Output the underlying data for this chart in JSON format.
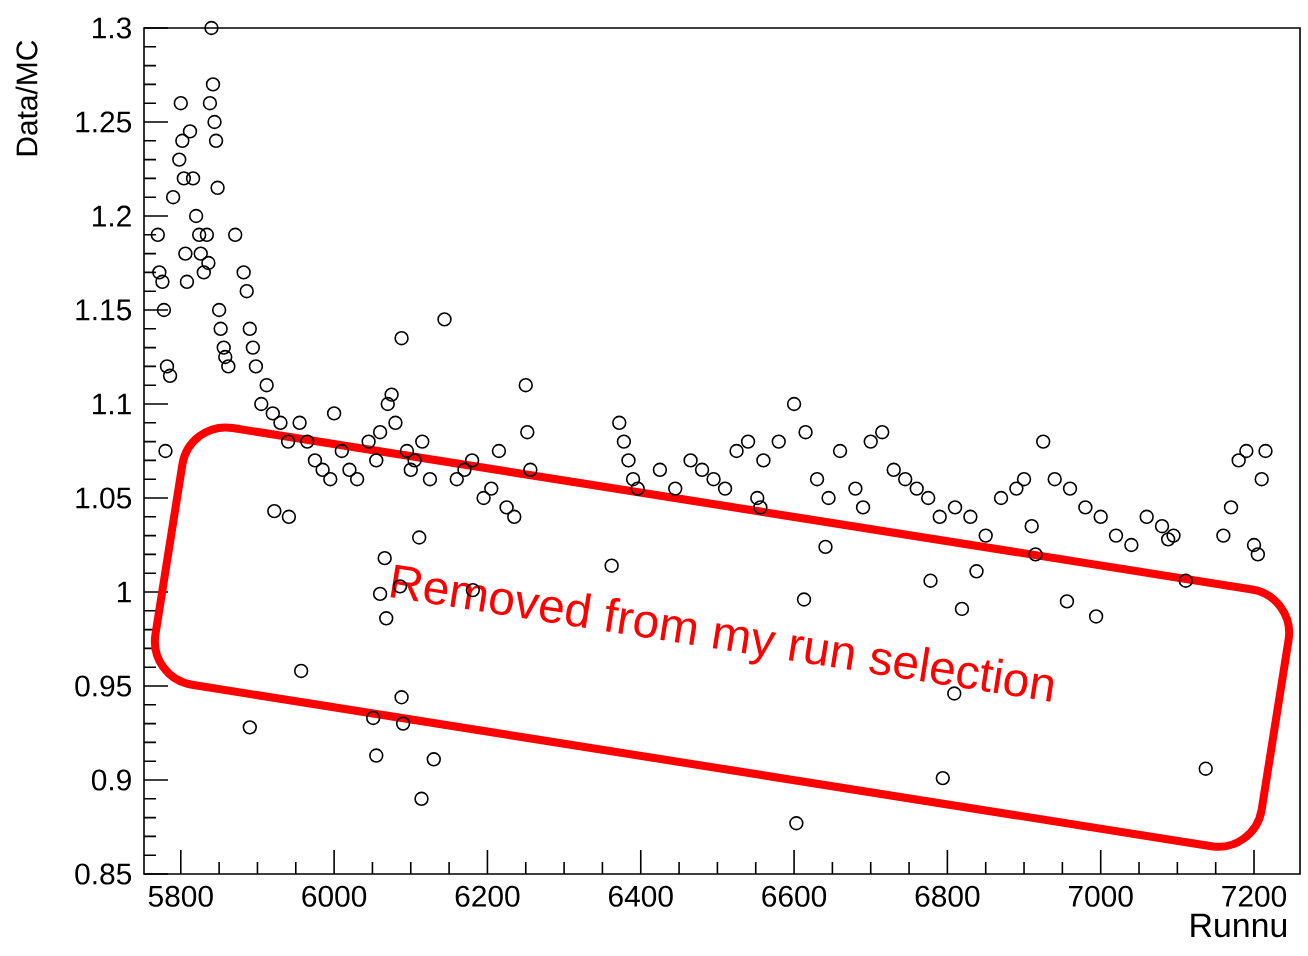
{
  "chart_data": {
    "type": "scatter",
    "ylabel": "Data/MC",
    "xlabel": "Runnu",
    "marker": "circle",
    "color": "#000000",
    "xlim": [
      5752,
      7260
    ],
    "ylim": [
      0.85,
      1.3
    ],
    "xticks": [
      5800,
      6000,
      6200,
      6400,
      6600,
      6800,
      7000,
      7200
    ],
    "yticks": [
      0.85,
      {
        "value": 0.9,
        "label": "0.9"
      },
      0.95,
      {
        "value": 1.0,
        "label": "1"
      },
      1.05,
      {
        "value": 1.1,
        "label": "1.1"
      },
      1.15,
      {
        "value": 1.2,
        "label": "1.2"
      },
      1.25,
      {
        "value": 1.3,
        "label": "1.3"
      }
    ],
    "annotations": [
      "Removed from my run selection"
    ],
    "x": [
      5780,
      5770,
      5772,
      5776,
      5778,
      5782,
      5786,
      5790,
      5800,
      5798,
      5802,
      5804,
      5806,
      5808,
      5812,
      5816,
      5820,
      5824,
      5826,
      5830,
      5840,
      5842,
      5838,
      5844,
      5846,
      5848,
      5836,
      5834,
      5850,
      5852,
      5856,
      5858,
      5862,
      5871,
      5882,
      5886,
      5890,
      5894,
      5898,
      5905,
      5912,
      5920,
      5930,
      5940,
      5955,
      5965,
      5975,
      5985,
      5995,
      6000,
      6010,
      6020,
      6030,
      6045,
      6055,
      6060,
      6070,
      6075,
      6080,
      6088,
      6095,
      6100,
      6105,
      6115,
      6125,
      6144,
      6160,
      6170,
      6180,
      6195,
      6205,
      6215,
      6225,
      6235,
      6250,
      6252,
      6256,
      6372,
      6378,
      6384,
      6390,
      6396,
      6425,
      6445,
      6465,
      6480,
      6495,
      6510,
      6525,
      6540,
      6552,
      6556,
      6560,
      6580,
      6600,
      6615,
      6630,
      6645,
      6660,
      6680,
      6690,
      6700,
      6715,
      6730,
      6745,
      6760,
      6775,
      6790,
      6810,
      6830,
      6850,
      6870,
      6890,
      6900,
      6910,
      6915,
      6925,
      6940,
      6960,
      6980,
      7000,
      7020,
      7040,
      7060,
      7080,
      7095,
      7160,
      7170,
      7180,
      7190,
      7200,
      7205,
      7210,
      7215,
      5890,
      5957,
      6051,
      6055,
      6088,
      6090,
      6130,
      6114,
      6068,
      6060,
      6086,
      6066,
      6181,
      6362,
      6613,
      6603,
      6794,
      6809,
      6819,
      6956,
      6994,
      7137,
      7111,
      6641,
      6838,
      6778,
      7088,
      5922,
      5941,
      6111
    ],
    "values": [
      1.075,
      1.19,
      1.17,
      1.165,
      1.15,
      1.12,
      1.115,
      1.21,
      1.26,
      1.23,
      1.24,
      1.22,
      1.18,
      1.165,
      1.245,
      1.22,
      1.2,
      1.19,
      1.18,
      1.17,
      1.3,
      1.27,
      1.26,
      1.25,
      1.24,
      1.215,
      1.175,
      1.19,
      1.15,
      1.14,
      1.13,
      1.125,
      1.12,
      1.19,
      1.17,
      1.16,
      1.14,
      1.13,
      1.12,
      1.1,
      1.11,
      1.095,
      1.09,
      1.08,
      1.09,
      1.08,
      1.07,
      1.065,
      1.06,
      1.095,
      1.075,
      1.065,
      1.06,
      1.08,
      1.07,
      1.085,
      1.1,
      1.105,
      1.09,
      1.135,
      1.075,
      1.065,
      1.07,
      1.08,
      1.06,
      1.145,
      1.06,
      1.065,
      1.07,
      1.05,
      1.055,
      1.075,
      1.045,
      1.04,
      1.11,
      1.085,
      1.065,
      1.09,
      1.08,
      1.07,
      1.06,
      1.055,
      1.065,
      1.055,
      1.07,
      1.065,
      1.06,
      1.055,
      1.075,
      1.08,
      1.05,
      1.045,
      1.07,
      1.08,
      1.1,
      1.085,
      1.06,
      1.05,
      1.075,
      1.055,
      1.045,
      1.08,
      1.085,
      1.065,
      1.06,
      1.055,
      1.05,
      1.04,
      1.045,
      1.04,
      1.03,
      1.05,
      1.055,
      1.06,
      1.035,
      1.02,
      1.08,
      1.06,
      1.055,
      1.045,
      1.04,
      1.03,
      1.025,
      1.04,
      1.035,
      1.03,
      1.03,
      1.045,
      1.07,
      1.075,
      1.025,
      1.02,
      1.06,
      1.075,
      0.928,
      0.958,
      0.933,
      0.913,
      0.944,
      0.93,
      0.911,
      0.89,
      0.986,
      0.999,
      1.003,
      1.018,
      1.001,
      1.014,
      0.996,
      0.877,
      0.901,
      0.946,
      0.991,
      0.995,
      0.987,
      0.906,
      1.006,
      1.024,
      1.011,
      1.006,
      1.028,
      1.043,
      1.04,
      1.029
    ]
  }
}
